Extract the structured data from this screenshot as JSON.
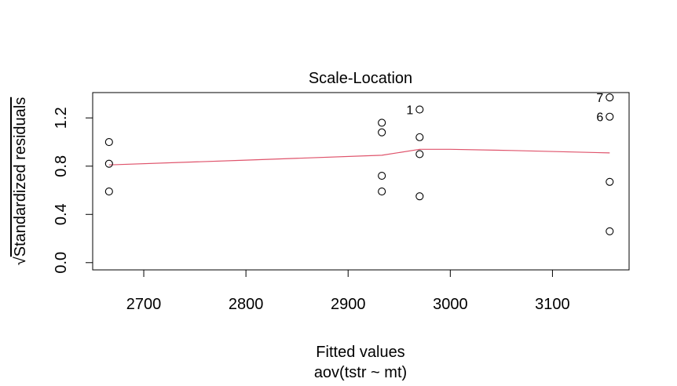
{
  "chart_data": {
    "type": "scatter",
    "title": "Scale-Location",
    "xlabel": "Fitted values",
    "subtitle": "aov(tstr ~ mt)",
    "ylabel": "Standardized residuals",
    "ylabel_prefix": "√",
    "xlim": [
      2650,
      3175
    ],
    "ylim": [
      -0.06,
      1.41
    ],
    "x_ticks": [
      2700,
      2800,
      2900,
      3000,
      3100
    ],
    "y_ticks": [
      0.0,
      0.4,
      0.8,
      1.2
    ],
    "y_tick_labels": [
      "0.0",
      "0.4",
      "0.8",
      "1.2"
    ],
    "grid": false,
    "points": [
      {
        "x": 2666,
        "y": 1.0
      },
      {
        "x": 2666,
        "y": 0.82
      },
      {
        "x": 2666,
        "y": 0.59
      },
      {
        "x": 2933,
        "y": 1.16
      },
      {
        "x": 2933,
        "y": 1.08
      },
      {
        "x": 2933,
        "y": 0.72
      },
      {
        "x": 2933,
        "y": 0.59
      },
      {
        "x": 2970,
        "y": 1.27,
        "label": "1"
      },
      {
        "x": 2970,
        "y": 1.04
      },
      {
        "x": 2970,
        "y": 0.9
      },
      {
        "x": 2970,
        "y": 0.55
      },
      {
        "x": 3156,
        "y": 1.37,
        "label": "7"
      },
      {
        "x": 3156,
        "y": 1.21,
        "label": "6"
      },
      {
        "x": 3156,
        "y": 0.67
      },
      {
        "x": 3156,
        "y": 0.26
      }
    ],
    "smooth_line": {
      "color": "#DF536B",
      "x": [
        2666,
        2800,
        2933,
        2970,
        3000,
        3060,
        3156
      ],
      "y": [
        0.81,
        0.85,
        0.89,
        0.94,
        0.94,
        0.93,
        0.91
      ]
    }
  }
}
